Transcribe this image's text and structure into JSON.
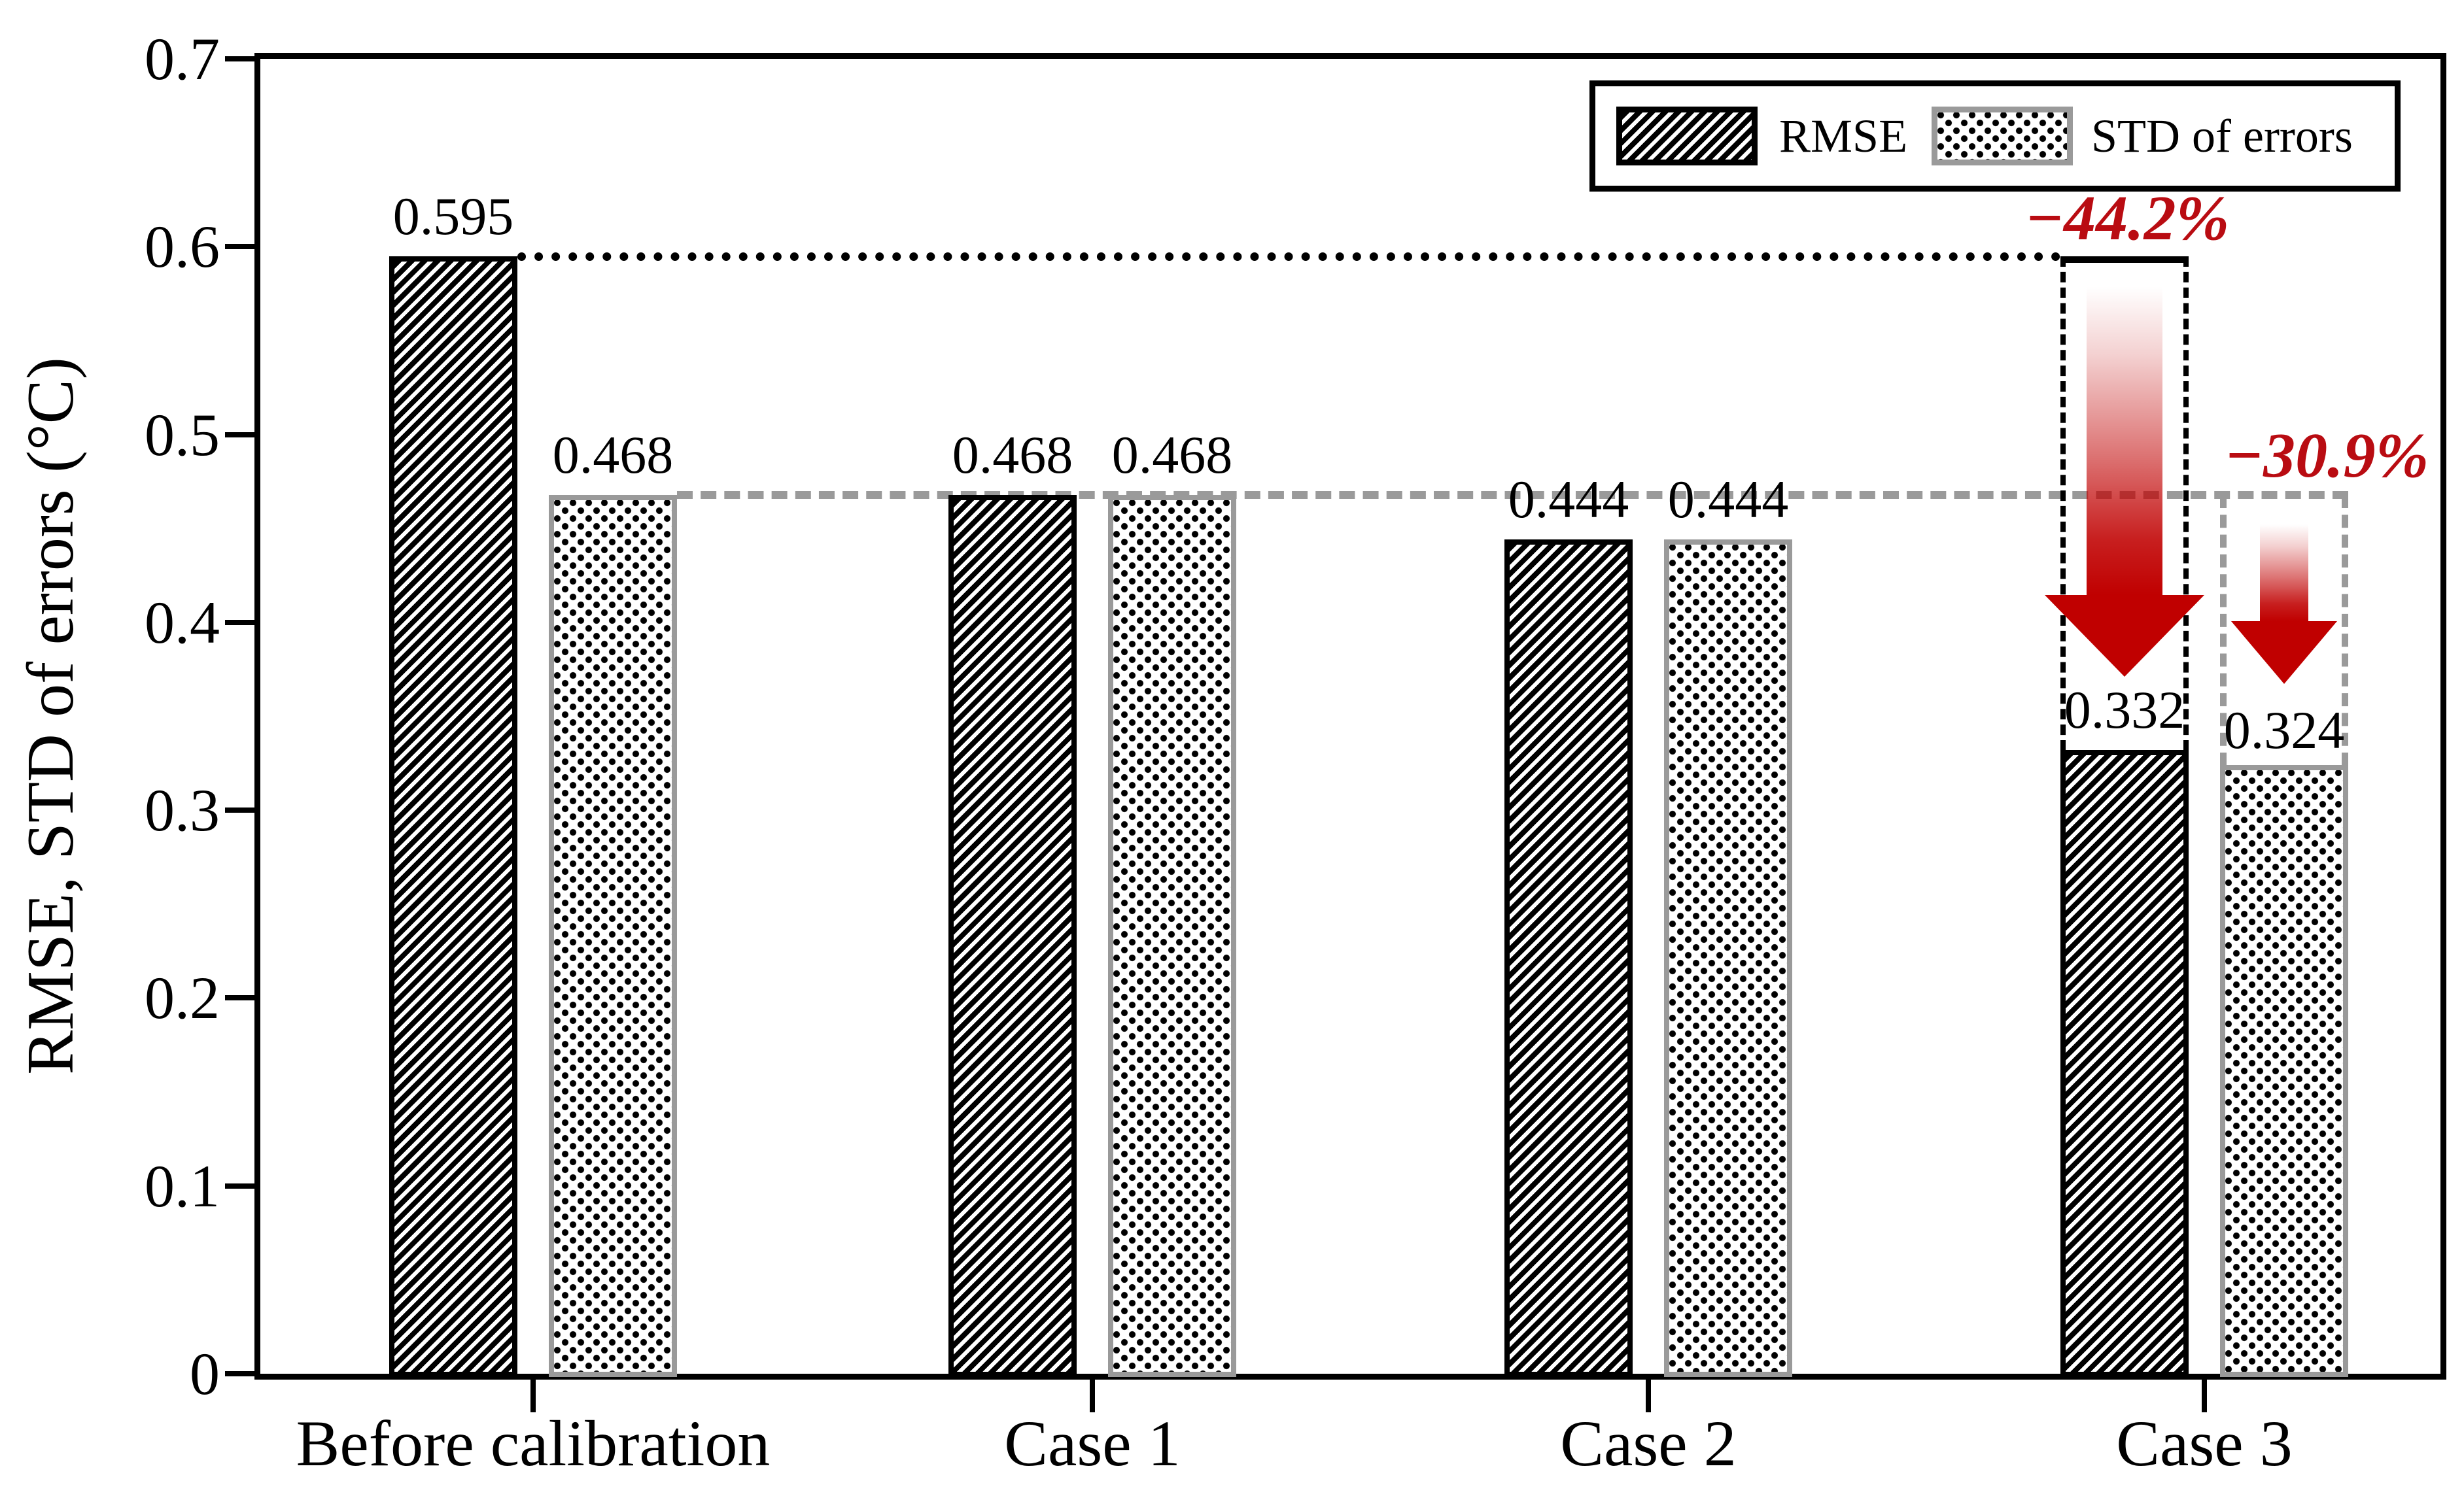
{
  "colors": {
    "black": "#000000",
    "gray": "#9a9a9a",
    "red_text": "#b90c12",
    "arrow_red": "#c00000",
    "background": "#ffffff"
  },
  "chart_data": {
    "type": "bar",
    "title": "",
    "xlabel": "",
    "ylabel": "RMSE, STD of errors (°C)",
    "ylim": [
      0,
      0.7
    ],
    "grid": false,
    "legend_position": "top-right",
    "categories": [
      "Before calibration",
      "Case 1",
      "Case 2",
      "Case 3"
    ],
    "series": [
      {
        "name": "RMSE",
        "pattern": "diagonal-hatch",
        "edge_color": "#000000",
        "values": [
          0.595,
          0.468,
          0.444,
          0.332
        ],
        "value_labels": [
          "0.595",
          "0.468",
          "0.444",
          "0.332"
        ]
      },
      {
        "name": "STD of errors",
        "pattern": "square-dots",
        "edge_color": "#9a9a9a",
        "values": [
          0.468,
          0.468,
          0.444,
          0.324
        ],
        "value_labels": [
          "0.468",
          "0.468",
          "0.444",
          "0.324"
        ]
      }
    ],
    "yticks": [
      {
        "value": 0.7,
        "label": "0.7"
      },
      {
        "value": 0.6,
        "label": "0.6"
      },
      {
        "value": 0.5,
        "label": "0.5"
      },
      {
        "value": 0.4,
        "label": "0.4"
      },
      {
        "value": 0.3,
        "label": "0.3"
      },
      {
        "value": 0.2,
        "label": "0.2"
      },
      {
        "value": 0.1,
        "label": "0.1"
      },
      {
        "value": 0,
        "label": "0"
      }
    ],
    "reference_lines": [
      {
        "value": 0.595,
        "from_series": 0,
        "style": "dotted",
        "color": "#000000"
      },
      {
        "value": 0.468,
        "from_series": 1,
        "style": "dashed",
        "color": "#9a9a9a"
      }
    ],
    "annotations": [
      {
        "text": "−44.2%",
        "category": "Case 3",
        "series": "RMSE",
        "from_value": 0.595,
        "to_value": 0.332,
        "box_style": "black-dashed",
        "arrow": "red-gradient-down"
      },
      {
        "text": "−30.9%",
        "category": "Case 3",
        "series": "STD of errors",
        "from_value": 0.468,
        "to_value": 0.324,
        "box_style": "gray-dashed",
        "arrow": "red-gradient-down"
      }
    ]
  }
}
